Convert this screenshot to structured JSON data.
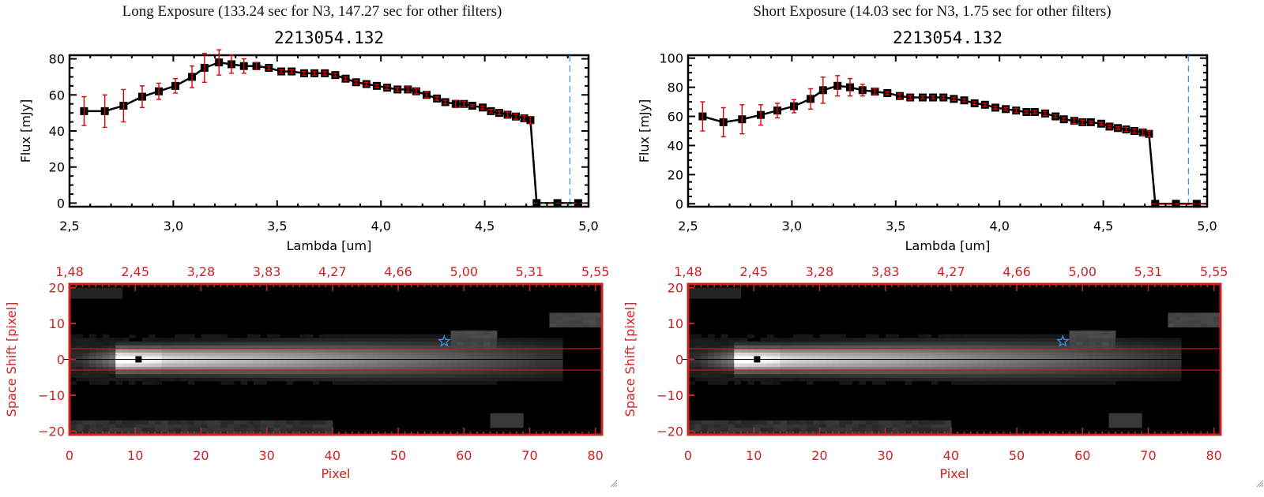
{
  "colors": {
    "spectrum_line": "#000000",
    "error_bar": "#e00000",
    "image_axis": "#cc2222",
    "blue_marker": "#3a8ee6",
    "aperture_line": "#cc1111"
  },
  "panels": [
    {
      "exposure_title": "Long Exposure (133.24 sec for N3, 147.27 sec for other filters)",
      "object_title": "2213054.132"
    },
    {
      "exposure_title": "Short Exposure (14.03 sec for N3, 1.75 sec for other filters)",
      "object_title": "2213054.132"
    }
  ],
  "chart_data": [
    {
      "type": "line",
      "panel": "long-exposure-spectrum",
      "title": "2213054.132",
      "xlabel": "Lambda [um]",
      "ylabel": "Flux [mJy]",
      "xlim": [
        2.5,
        5.0
      ],
      "ylim": [
        -2,
        82
      ],
      "xticks": [
        "2.5",
        "3.0",
        "3.5",
        "4.0",
        "4.5",
        "5.0"
      ],
      "yticks": [
        "0",
        "20",
        "40",
        "60",
        "80"
      ],
      "ytick_values": [
        0,
        20,
        40,
        60,
        80
      ],
      "xtick_values": [
        2.5,
        3.0,
        3.5,
        4.0,
        4.5,
        5.0
      ],
      "vline_x": 4.91,
      "zero_line_range": [
        4.73,
        4.99
      ],
      "series": [
        {
          "name": "flux",
          "x": [
            2.57,
            2.67,
            2.76,
            2.85,
            2.93,
            3.01,
            3.09,
            3.15,
            3.22,
            3.28,
            3.34,
            3.4,
            3.46,
            3.52,
            3.57,
            3.63,
            3.68,
            3.73,
            3.78,
            3.83,
            3.88,
            3.93,
            3.98,
            4.03,
            4.08,
            4.13,
            4.17,
            4.22,
            4.27,
            4.31,
            4.36,
            4.4,
            4.44,
            4.49,
            4.53,
            4.57,
            4.61,
            4.65,
            4.69,
            4.72,
            4.75,
            4.85,
            4.95
          ],
          "y": [
            51,
            51,
            54,
            59,
            62,
            65,
            70,
            75,
            78,
            77,
            76,
            76,
            75,
            73,
            73,
            72,
            72,
            72,
            71,
            69,
            67,
            66,
            65,
            64,
            63,
            63,
            62,
            60,
            58,
            56,
            55,
            55,
            54,
            53,
            51,
            50,
            49,
            48,
            47,
            46,
            0,
            0,
            0
          ],
          "err": [
            8,
            9,
            9,
            6,
            4.5,
            4,
            6,
            8,
            7,
            5,
            4,
            2,
            1,
            1,
            1,
            1,
            1,
            1,
            1,
            1,
            1,
            1,
            0.7,
            1,
            1,
            1.5,
            1.5,
            1.5,
            1,
            1,
            2,
            1.5,
            0.6,
            0.8,
            1,
            1,
            1.5,
            1.5,
            1.5,
            2,
            0,
            0,
            0
          ]
        }
      ]
    },
    {
      "type": "line",
      "panel": "short-exposure-spectrum",
      "title": "2213054.132",
      "xlabel": "Lambda [um]",
      "ylabel": "Flux [mJy]",
      "xlim": [
        2.5,
        5.0
      ],
      "ylim": [
        -2,
        102
      ],
      "xticks": [
        "2.5",
        "3.0",
        "3.5",
        "4.0",
        "4.5",
        "5.0"
      ],
      "yticks": [
        "0",
        "20",
        "40",
        "60",
        "80",
        "100"
      ],
      "ytick_values": [
        0,
        20,
        40,
        60,
        80,
        100
      ],
      "xtick_values": [
        2.5,
        3.0,
        3.5,
        4.0,
        4.5,
        5.0
      ],
      "vline_x": 4.91,
      "zero_line_range": [
        4.73,
        4.99
      ],
      "series": [
        {
          "name": "flux",
          "x": [
            2.57,
            2.67,
            2.76,
            2.85,
            2.93,
            3.01,
            3.09,
            3.15,
            3.22,
            3.28,
            3.34,
            3.4,
            3.46,
            3.52,
            3.57,
            3.63,
            3.68,
            3.73,
            3.78,
            3.83,
            3.88,
            3.93,
            3.98,
            4.03,
            4.08,
            4.13,
            4.17,
            4.22,
            4.27,
            4.31,
            4.36,
            4.4,
            4.44,
            4.49,
            4.53,
            4.57,
            4.61,
            4.65,
            4.69,
            4.72,
            4.75,
            4.85,
            4.95
          ],
          "y": [
            60,
            56,
            58,
            61,
            64,
            67,
            72,
            78,
            81,
            80,
            78,
            77,
            76,
            74,
            73,
            73,
            73,
            73,
            72,
            71,
            69,
            68,
            66,
            65,
            64,
            63,
            63,
            62,
            60,
            58,
            57,
            56,
            56,
            55,
            53,
            52,
            51,
            50,
            49,
            48,
            0,
            0,
            0
          ],
          "err": [
            10,
            10,
            10,
            7,
            5,
            4.5,
            7,
            9,
            7,
            6,
            4,
            2,
            1,
            1.5,
            1.5,
            1,
            1,
            1,
            1,
            1,
            1,
            1,
            1,
            1,
            1.5,
            1,
            1,
            1.5,
            1,
            1,
            2,
            1.5,
            0.8,
            0.8,
            1,
            1,
            1.5,
            1.5,
            2,
            2,
            0,
            0,
            0
          ]
        }
      ]
    },
    {
      "type": "heatmap",
      "panel": "long-exposure-image",
      "xlabel": "Pixel",
      "ylabel": "Space Shift [pixel]",
      "xlim": [
        0,
        81
      ],
      "ylim": [
        -21,
        21
      ],
      "xticks": [
        "0",
        "10",
        "20",
        "30",
        "40",
        "50",
        "60",
        "70",
        "80"
      ],
      "xtick_values": [
        0,
        10,
        20,
        30,
        40,
        50,
        60,
        70,
        80
      ],
      "yticks": [
        "20",
        "10",
        "0",
        "-10",
        "-20"
      ],
      "ytick_values": [
        20,
        10,
        0,
        -10,
        -20
      ],
      "top_xticks": [
        "1.48",
        "2.45",
        "3.28",
        "3.83",
        "4.27",
        "4.66",
        "5.00",
        "5.31",
        "5.55"
      ],
      "aperture_y": [
        3,
        -3
      ],
      "center_marker": {
        "x": 10.5,
        "y": 0
      },
      "star_marker": {
        "x": 57,
        "y": 5
      }
    },
    {
      "type": "heatmap",
      "panel": "short-exposure-image",
      "xlabel": "Pixel",
      "ylabel": "Space Shift [pixel]",
      "xlim": [
        0,
        81
      ],
      "ylim": [
        -21,
        21
      ],
      "xticks": [
        "0",
        "10",
        "20",
        "30",
        "40",
        "50",
        "60",
        "70",
        "80"
      ],
      "xtick_values": [
        0,
        10,
        20,
        30,
        40,
        50,
        60,
        70,
        80
      ],
      "yticks": [
        "20",
        "10",
        "0",
        "-10",
        "-20"
      ],
      "ytick_values": [
        20,
        10,
        0,
        -10,
        -20
      ],
      "top_xticks": [
        "1.48",
        "2.45",
        "3.28",
        "3.83",
        "4.27",
        "4.66",
        "5.00",
        "5.31",
        "5.55"
      ],
      "aperture_y": [
        3,
        -3
      ],
      "center_marker": {
        "x": 10.5,
        "y": 0
      },
      "star_marker": {
        "x": 57,
        "y": 5
      }
    }
  ]
}
